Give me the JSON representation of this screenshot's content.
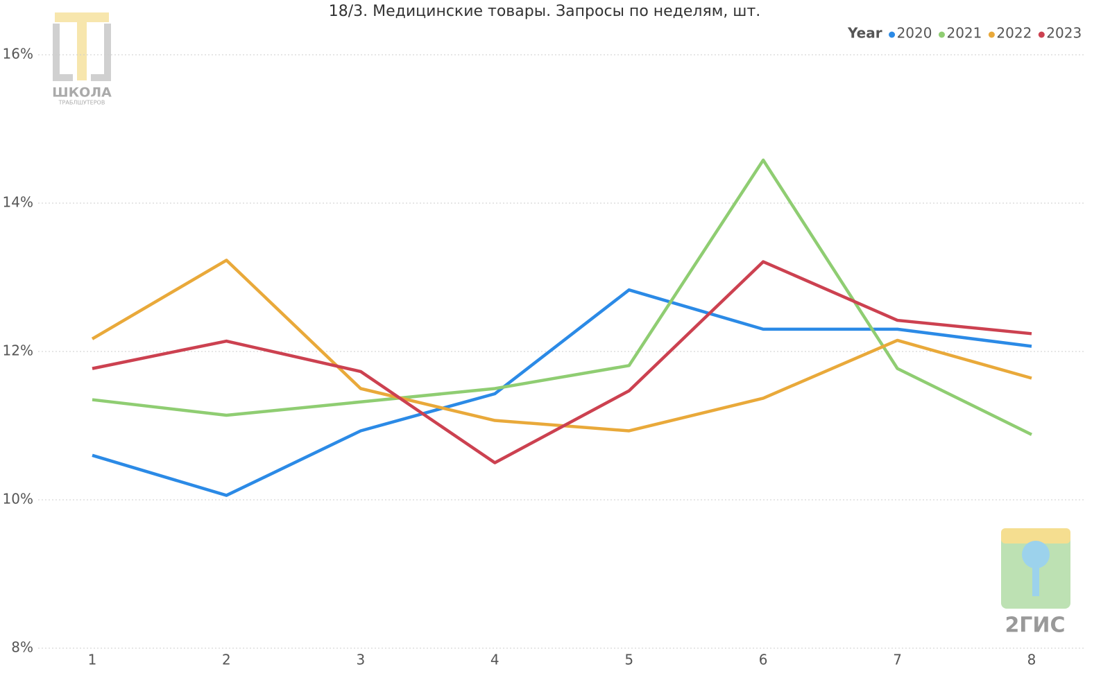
{
  "chart_data": {
    "type": "line",
    "title": "18/3. Медицинские товары. Запросы по неделям, шт.",
    "legend_title": "Year",
    "categories": [
      1,
      2,
      3,
      4,
      5,
      6,
      7,
      8
    ],
    "series": [
      {
        "name": "2020",
        "color": "#2b8ae6",
        "values": [
          10.6,
          10.06,
          10.93,
          11.43,
          12.83,
          12.3,
          12.3,
          12.07
        ]
      },
      {
        "name": "2021",
        "color": "#8fcd72",
        "values": [
          11.35,
          11.14,
          11.32,
          11.5,
          11.81,
          14.58,
          11.77,
          10.88
        ]
      },
      {
        "name": "2022",
        "color": "#e9a93a",
        "values": [
          12.17,
          13.23,
          11.5,
          11.07,
          10.93,
          11.37,
          12.15,
          11.64
        ]
      },
      {
        "name": "2023",
        "color": "#cc4150",
        "values": [
          11.77,
          12.14,
          11.73,
          10.5,
          11.47,
          13.21,
          12.42,
          12.24
        ]
      }
    ],
    "ylim": [
      8,
      16
    ],
    "yticks": [
      {
        "value": 8,
        "label": "8%"
      },
      {
        "value": 10,
        "label": "10%"
      },
      {
        "value": 12,
        "label": "12%"
      },
      {
        "value": 14,
        "label": "14%"
      },
      {
        "value": 16,
        "label": "16%"
      }
    ],
    "grid": true,
    "legend_position": "top-right",
    "logos": [
      "ШКОЛА",
      "ТРАБЛШУТЕРОВ",
      "2ГИС"
    ]
  }
}
